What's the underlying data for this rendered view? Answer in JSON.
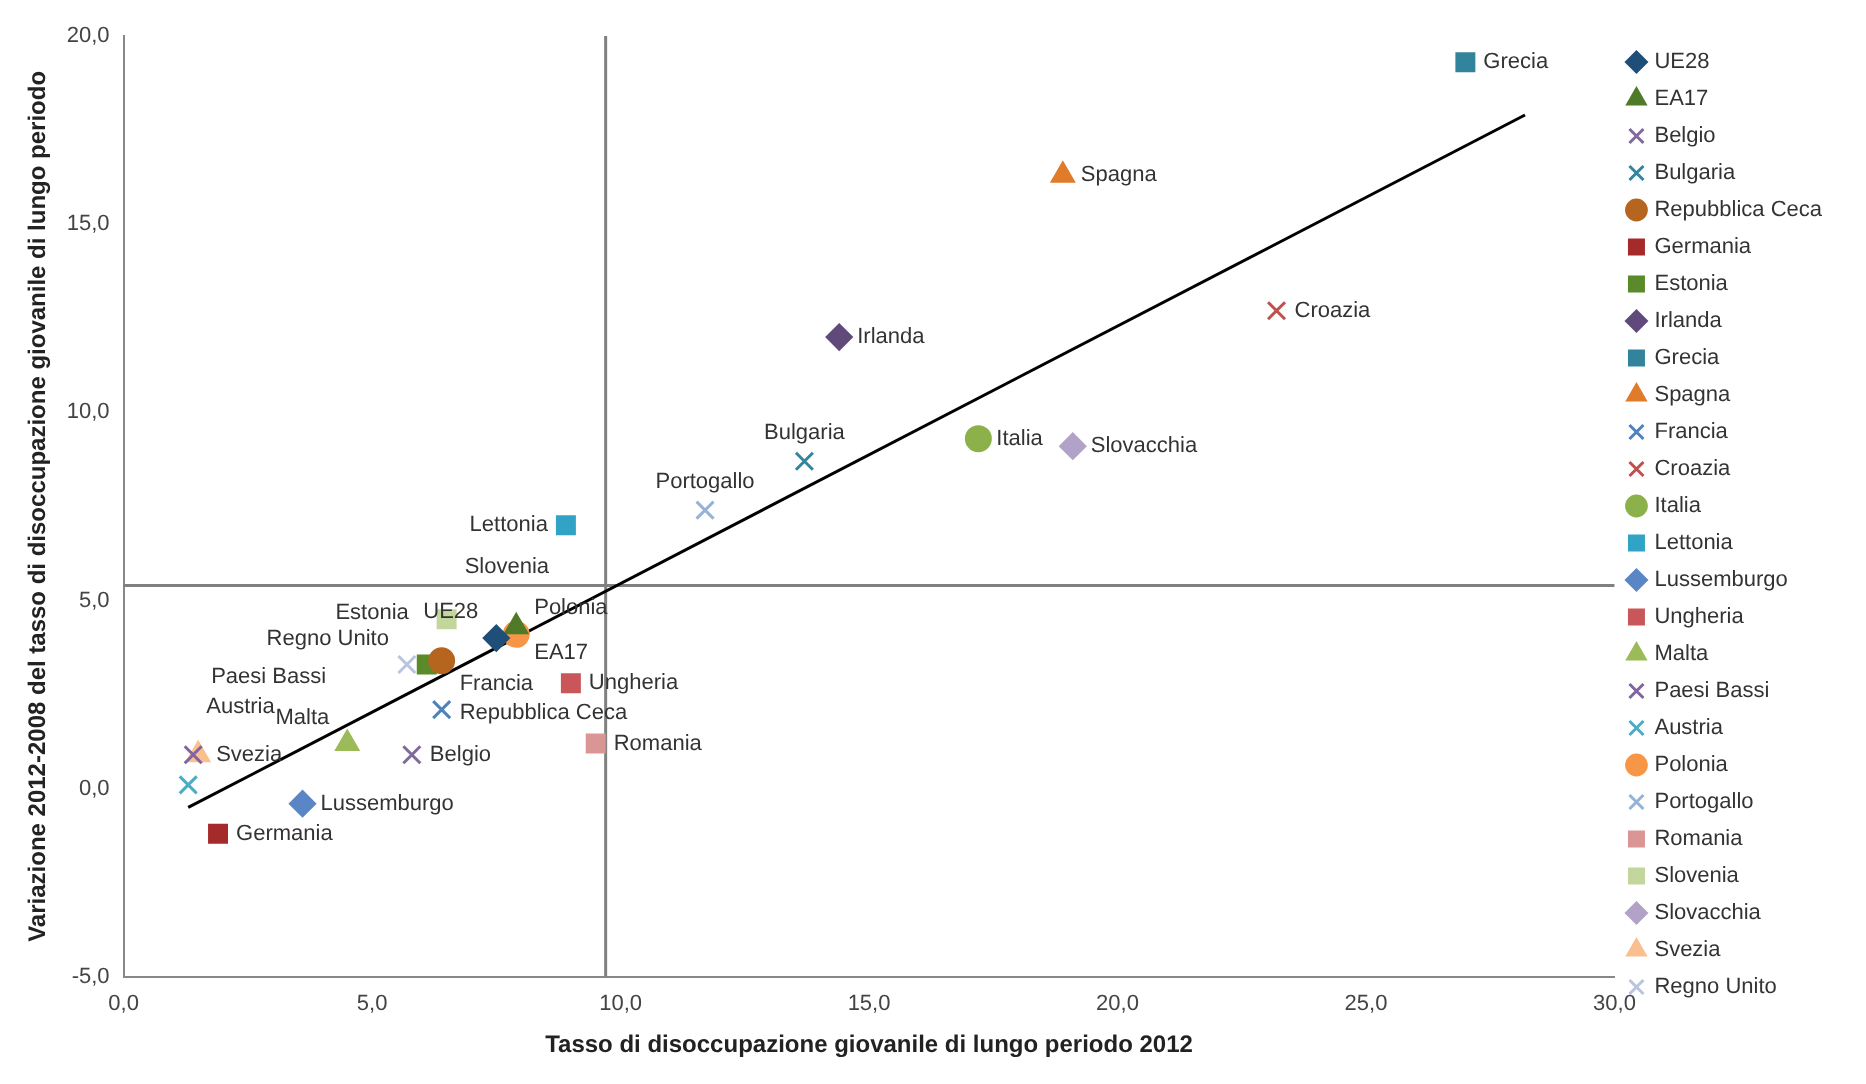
{
  "chart_data": {
    "type": "scatter",
    "xlabel": "Tasso di disoccupazione giovanile di lungo periodo 2012",
    "ylabel": "Variazione 2012-2008 del tasso di disoccupazione giovanile di lungo periodo",
    "xlim": [
      0,
      30
    ],
    "ylim": [
      -5,
      20
    ],
    "xticks": [
      {
        "value": 0,
        "label": "0,0"
      },
      {
        "value": 5,
        "label": "5,0"
      },
      {
        "value": 10,
        "label": "10,0"
      },
      {
        "value": 15,
        "label": "15,0"
      },
      {
        "value": 20,
        "label": "20,0"
      },
      {
        "value": 25,
        "label": "25,0"
      },
      {
        "value": 30,
        "label": "30,0"
      }
    ],
    "yticks": [
      {
        "value": -5,
        "label": "-5,0"
      },
      {
        "value": 0,
        "label": "0,0"
      },
      {
        "value": 5,
        "label": "5,0"
      },
      {
        "value": 10,
        "label": "10,0"
      },
      {
        "value": 15,
        "label": "15,0"
      },
      {
        "value": 20,
        "label": "20,0"
      }
    ],
    "grid": false,
    "legend": "right",
    "ref_lines": [
      {
        "axis": "x",
        "value": 9.7,
        "color": "#808080"
      },
      {
        "axis": "y",
        "value": 5.4,
        "color": "#808080"
      }
    ],
    "series": [
      {
        "name": "UE28",
        "color": "#1f4e79",
        "marker": "diamond",
        "x": [
          7.5
        ],
        "values": [
          4.0
        ]
      },
      {
        "name": "EA17",
        "color": "#4f7a28",
        "marker": "triangle",
        "x": [
          7.9
        ],
        "values": [
          4.3
        ]
      },
      {
        "name": "Belgio",
        "color": "#7f6a9a",
        "marker": "cross",
        "x": [
          5.8
        ],
        "values": [
          0.9
        ]
      },
      {
        "name": "Bulgaria",
        "color": "#31859c",
        "marker": "cross",
        "x": [
          13.7
        ],
        "values": [
          8.7
        ]
      },
      {
        "name": "Repubblica Ceca",
        "color": "#b5651d",
        "marker": "circle",
        "x": [
          6.4
        ],
        "values": [
          3.4
        ]
      },
      {
        "name": "Germania",
        "color": "#a52a2a",
        "marker": "square",
        "x": [
          1.9
        ],
        "values": [
          -1.2
        ]
      },
      {
        "name": "Estonia",
        "color": "#5a8a2a",
        "marker": "square",
        "x": [
          6.1
        ],
        "values": [
          3.3
        ]
      },
      {
        "name": "Irlanda",
        "color": "#604a7b",
        "marker": "diamond",
        "x": [
          14.4
        ],
        "values": [
          12.0
        ]
      },
      {
        "name": "Grecia",
        "color": "#31849b",
        "marker": "square",
        "x": [
          27.0
        ],
        "values": [
          19.3
        ]
      },
      {
        "name": "Spagna",
        "color": "#e07b2a",
        "marker": "triangle",
        "x": [
          18.9
        ],
        "values": [
          16.3
        ]
      },
      {
        "name": "Francia",
        "color": "#4f81bd",
        "marker": "cross",
        "x": [
          6.4
        ],
        "values": [
          2.1
        ]
      },
      {
        "name": "Croazia",
        "color": "#c0504d",
        "marker": "cross",
        "x": [
          23.2
        ],
        "values": [
          12.7
        ]
      },
      {
        "name": "Italia",
        "color": "#8cb04a",
        "marker": "circle",
        "x": [
          17.2
        ],
        "values": [
          9.3
        ]
      },
      {
        "name": "Lettonia",
        "color": "#31a3c4",
        "marker": "square",
        "x": [
          8.9
        ],
        "values": [
          7.0
        ]
      },
      {
        "name": "Lussemburgo",
        "color": "#5b86c5",
        "marker": "diamond",
        "x": [
          3.6
        ],
        "values": [
          -0.4
        ]
      },
      {
        "name": "Ungheria",
        "color": "#c9575a",
        "marker": "square",
        "x": [
          9.0
        ],
        "values": [
          2.8
        ]
      },
      {
        "name": "Malta",
        "color": "#9bbb59",
        "marker": "triangle",
        "x": [
          4.5
        ],
        "values": [
          1.2
        ]
      },
      {
        "name": "Paesi Bassi",
        "color": "#8064a2",
        "marker": "cross",
        "x": [
          1.4
        ],
        "values": [
          0.9
        ]
      },
      {
        "name": "Austria",
        "color": "#4bacc6",
        "marker": "cross",
        "x": [
          1.3
        ],
        "values": [
          0.1
        ]
      },
      {
        "name": "Polonia",
        "color": "#f79646",
        "marker": "circle",
        "x": [
          7.9
        ],
        "values": [
          4.1
        ]
      },
      {
        "name": "Portogallo",
        "color": "#95b3d7",
        "marker": "cross",
        "x": [
          11.7
        ],
        "values": [
          7.4
        ]
      },
      {
        "name": "Romania",
        "color": "#d99694",
        "marker": "square",
        "x": [
          9.5
        ],
        "values": [
          1.2
        ]
      },
      {
        "name": "Slovenia",
        "color": "#c3d69b",
        "marker": "square",
        "x": [
          6.5
        ],
        "values": [
          4.5
        ]
      },
      {
        "name": "Slovacchia",
        "color": "#b3a2c7",
        "marker": "diamond",
        "x": [
          19.1
        ],
        "values": [
          9.1
        ]
      },
      {
        "name": "Svezia",
        "color": "#fabf8f",
        "marker": "triangle",
        "x": [
          1.5
        ],
        "values": [
          0.9
        ]
      },
      {
        "name": "Regno Unito",
        "color": "#b9c5e0",
        "marker": "cross",
        "x": [
          5.7
        ],
        "values": [
          3.3
        ]
      },
      {
        "type": "line",
        "color": "#000000",
        "marker": "none",
        "x": [
          1.3,
          28.2
        ],
        "values": [
          -0.5,
          17.9
        ]
      }
    ]
  }
}
